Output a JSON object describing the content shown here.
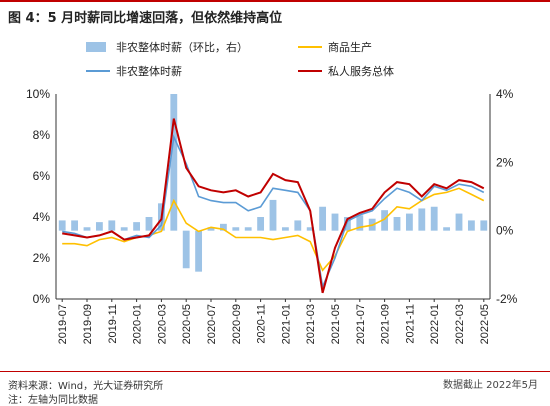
{
  "header": {
    "title": "图 4：5 月时薪同比增速回落，但依然维持高位"
  },
  "footer": {
    "source": "资料来源：Wind，光大证券研究所",
    "note": "注：左轴为同比数据",
    "right_text": "数据截止 2022年5月"
  },
  "colors": {
    "title_rule": "#c00000",
    "bars": "#9dc3e6",
    "goods": "#ffc000",
    "nonfarm_line": "#5b9bd5",
    "private_services": "#c00000"
  },
  "chart_data": {
    "type": "bar+line",
    "x": [
      "2019-07",
      "2019-08",
      "2019-09",
      "2019-10",
      "2019-11",
      "2019-12",
      "2020-01",
      "2020-02",
      "2020-03",
      "2020-04",
      "2020-05",
      "2020-06",
      "2020-07",
      "2020-08",
      "2020-09",
      "2020-10",
      "2020-11",
      "2020-12",
      "2021-01",
      "2021-02",
      "2021-03",
      "2021-04",
      "2021-05",
      "2021-06",
      "2021-07",
      "2021-08",
      "2021-09",
      "2021-10",
      "2021-11",
      "2021-12",
      "2022-01",
      "2022-02",
      "2022-03",
      "2022-04",
      "2022-05"
    ],
    "x_tick_labels": [
      "2019-07",
      "2019-09",
      "2019-11",
      "2020-01",
      "2020-03",
      "2020-05",
      "2020-07",
      "2020-09",
      "2020-11",
      "2021-01",
      "2021-03",
      "2021-05",
      "2021-07",
      "2021-09",
      "2021-11",
      "2022-01",
      "2022-03",
      "2022-05"
    ],
    "y_left": {
      "min": 0,
      "max": 10,
      "ticks": [
        "0%",
        "2%",
        "4%",
        "6%",
        "8%",
        "10%"
      ]
    },
    "y_right": {
      "min": -2,
      "max": 4,
      "ticks": [
        "-2%",
        "0%",
        "2%",
        "4%"
      ]
    },
    "legend_position": "top",
    "series": [
      {
        "name": "非农整体时薪（环比，右）",
        "kind": "bar",
        "axis": "right",
        "values": [
          0.3,
          0.3,
          0.1,
          0.25,
          0.3,
          0.1,
          0.25,
          0.4,
          0.8,
          4.0,
          -1.1,
          -1.2,
          0.1,
          0.2,
          0.1,
          0.1,
          0.4,
          0.9,
          0.1,
          0.3,
          0.1,
          0.7,
          0.5,
          0.4,
          0.45,
          0.35,
          0.6,
          0.4,
          0.5,
          0.65,
          0.7,
          0.1,
          0.5,
          0.3,
          0.3
        ]
      },
      {
        "name": "商品生产",
        "kind": "line",
        "axis": "left",
        "values": [
          2.7,
          2.7,
          2.6,
          2.9,
          3.0,
          2.8,
          3.0,
          3.1,
          3.3,
          4.8,
          3.7,
          3.3,
          3.5,
          3.4,
          3.0,
          3.0,
          3.0,
          2.9,
          3.0,
          3.1,
          2.8,
          1.4,
          2.1,
          3.3,
          3.5,
          3.6,
          3.9,
          4.5,
          4.4,
          4.8,
          5.1,
          5.2,
          5.4,
          5.1,
          4.8
        ]
      },
      {
        "name": "非农整体时薪",
        "kind": "line",
        "axis": "left",
        "values": [
          3.3,
          3.2,
          3.0,
          3.1,
          3.3,
          2.9,
          3.1,
          3.0,
          3.6,
          7.9,
          6.6,
          5.0,
          4.8,
          4.7,
          4.7,
          4.3,
          4.5,
          5.4,
          5.3,
          5.2,
          4.3,
          0.6,
          2.0,
          3.8,
          4.1,
          4.3,
          4.9,
          5.4,
          5.2,
          4.8,
          5.5,
          5.3,
          5.6,
          5.5,
          5.2
        ]
      },
      {
        "name": "私人服务总体",
        "kind": "line",
        "axis": "left",
        "values": [
          3.2,
          3.1,
          3.0,
          3.1,
          3.3,
          2.9,
          3.0,
          3.1,
          3.9,
          8.8,
          6.4,
          5.5,
          5.3,
          5.2,
          5.3,
          5.0,
          5.2,
          6.1,
          5.8,
          5.7,
          4.3,
          0.3,
          2.5,
          3.9,
          4.2,
          4.4,
          5.2,
          5.7,
          5.6,
          5.0,
          5.6,
          5.4,
          5.8,
          5.7,
          5.4
        ]
      }
    ]
  }
}
